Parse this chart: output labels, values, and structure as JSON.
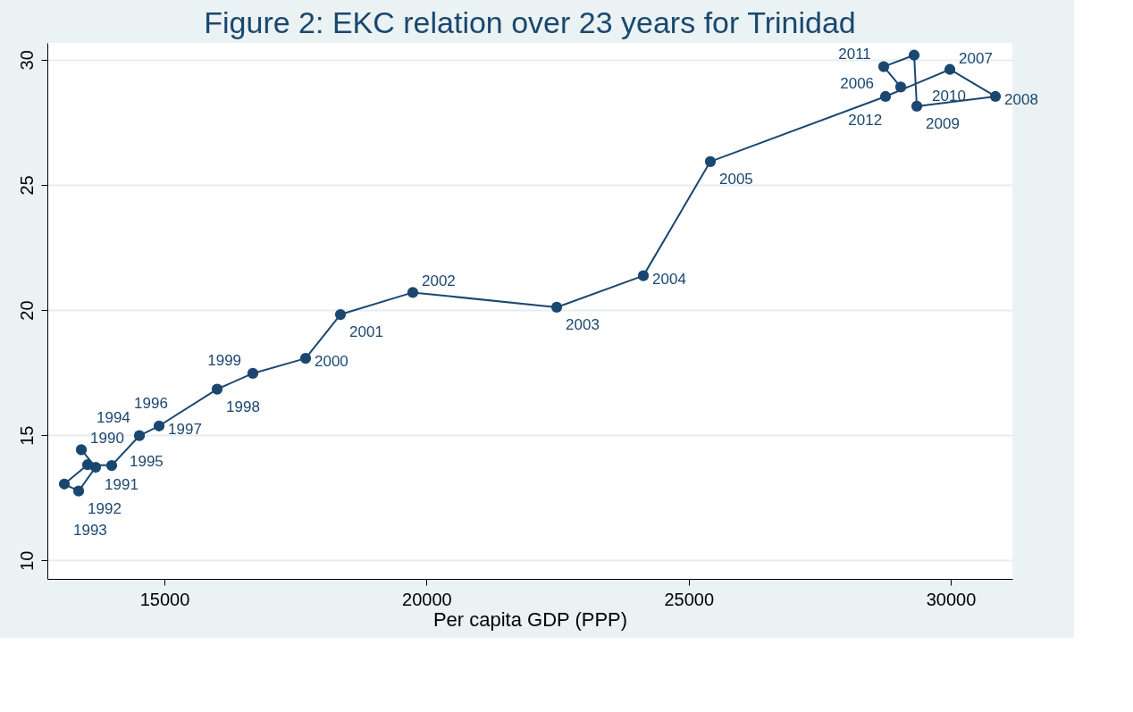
{
  "chart_data": {
    "type": "line",
    "title": "Figure 2: EKC relation over 23 years for Trinidad",
    "xlabel": "Per capita GDP (PPP)",
    "x": [
      13415,
      13688,
      13364,
      13091,
      13534,
      13994,
      14523,
      14898,
      16006,
      16687,
      17693,
      18358,
      19738,
      22483,
      24136,
      25414,
      28755,
      29983,
      30852,
      29352,
      29301,
      28721,
      29045
    ],
    "series": [
      {
        "color": "#1a476f",
        "values": [
          14.42,
          13.72,
          12.77,
          13.05,
          13.82,
          13.79,
          14.98,
          15.37,
          16.84,
          17.47,
          18.07,
          19.82,
          20.7,
          20.11,
          21.37,
          25.93,
          28.53,
          29.61,
          28.53,
          28.14,
          30.18,
          29.72,
          28.91
        ]
      }
    ],
    "annotations": [
      {
        "text": "1990",
        "x": 13415,
        "y": 14.42
      },
      {
        "text": "1991",
        "x": 13688,
        "y": 13.72
      },
      {
        "text": "1992",
        "x": 13364,
        "y": 12.77
      },
      {
        "text": "1993",
        "x": 13091,
        "y": 13.05
      },
      {
        "text": "1994",
        "x": 13534,
        "y": 13.82
      },
      {
        "text": "1995",
        "x": 13994,
        "y": 13.79
      },
      {
        "text": "1996",
        "x": 14523,
        "y": 14.98
      },
      {
        "text": "1997",
        "x": 14898,
        "y": 15.37
      },
      {
        "text": "1998",
        "x": 16006,
        "y": 16.84
      },
      {
        "text": "1999",
        "x": 16687,
        "y": 17.47
      },
      {
        "text": "2000",
        "x": 17693,
        "y": 18.07
      },
      {
        "text": "2001",
        "x": 18358,
        "y": 19.82
      },
      {
        "text": "2002",
        "x": 19738,
        "y": 20.7
      },
      {
        "text": "2003",
        "x": 22483,
        "y": 20.11
      },
      {
        "text": "2004",
        "x": 24136,
        "y": 21.37
      },
      {
        "text": "2005",
        "x": 25414,
        "y": 25.93
      },
      {
        "text": "2006",
        "x": 28755,
        "y": 28.53
      },
      {
        "text": "2007",
        "x": 29983,
        "y": 29.61
      },
      {
        "text": "2008",
        "x": 30852,
        "y": 28.53
      },
      {
        "text": "2009",
        "x": 29352,
        "y": 28.14
      },
      {
        "text": "2010",
        "x": 29301,
        "y": 30.18
      },
      {
        "text": "2011",
        "x": 28721,
        "y": 29.72
      },
      {
        "text": "2012",
        "x": 29045,
        "y": 28.91
      }
    ],
    "xlim": [
      12767,
      31175
    ],
    "ylim": [
      9.26,
      30.67
    ],
    "xticks": [
      15000,
      20000,
      25000,
      30000
    ],
    "yticks": [
      10,
      15,
      20,
      25,
      30
    ],
    "grid": "y",
    "marker": "circle",
    "line_style": "solid"
  }
}
